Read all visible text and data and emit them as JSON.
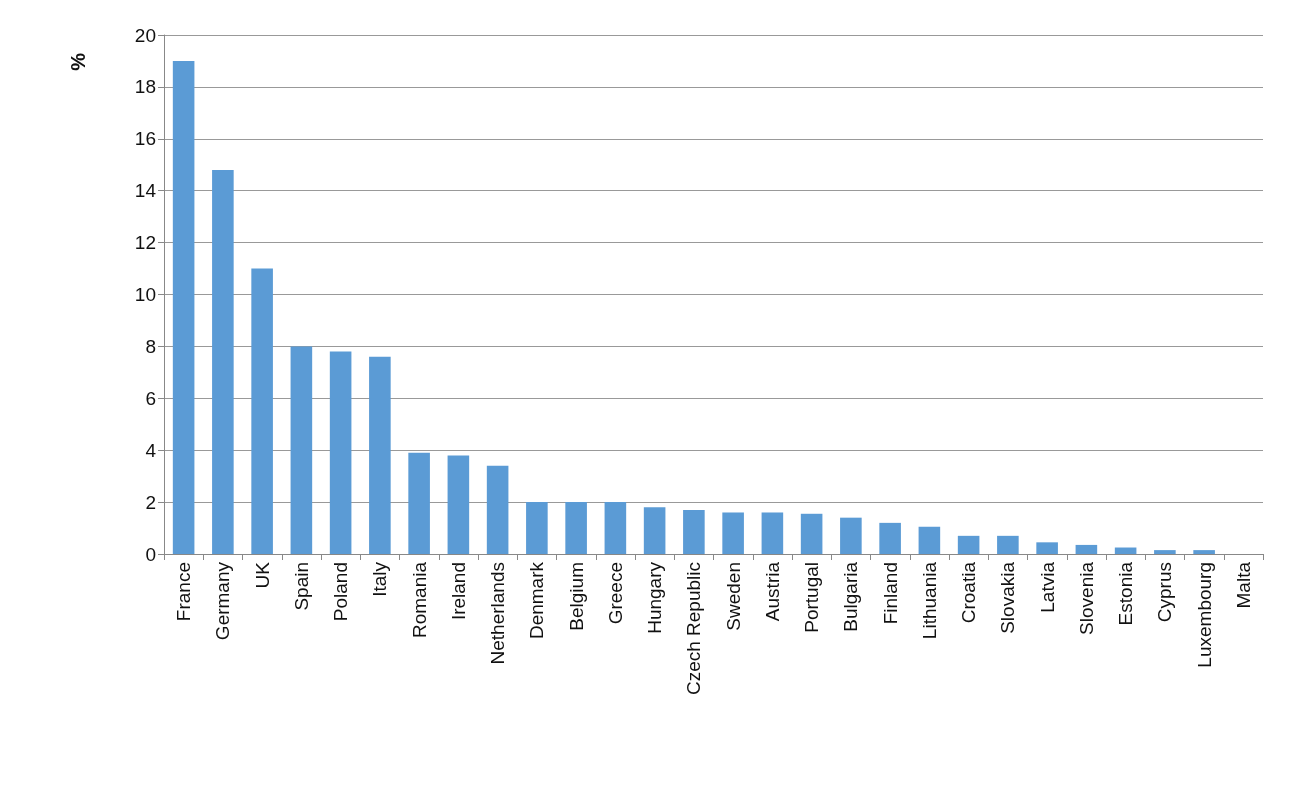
{
  "chart_data": {
    "type": "bar",
    "ylabel": "%",
    "categories": [
      "France",
      "Germany",
      "UK",
      "Spain",
      "Poland",
      "Italy",
      "Romania",
      "Ireland",
      "Netherlands",
      "Denmark",
      "Belgium",
      "Greece",
      "Hungary",
      "Czech Republic",
      "Sweden",
      "Austria",
      "Portugal",
      "Bulgaria",
      "Finland",
      "Lithuania",
      "Croatia",
      "Slovakia",
      "Latvia",
      "Slovenia",
      "Estonia",
      "Cyprus",
      "Luxembourg",
      "Malta"
    ],
    "values": [
      19.0,
      14.8,
      11.0,
      8.0,
      7.8,
      7.6,
      3.9,
      3.8,
      3.4,
      2.0,
      2.0,
      2.0,
      1.8,
      1.7,
      1.6,
      1.6,
      1.55,
      1.4,
      1.2,
      1.05,
      0.7,
      0.7,
      0.45,
      0.35,
      0.25,
      0.15,
      0.15,
      0
    ],
    "color": "#5b9bd5",
    "ylim": [
      0,
      20
    ],
    "yticks": [
      0,
      2,
      4,
      6,
      8,
      10,
      12,
      14,
      16,
      18,
      20
    ],
    "grid": "y"
  }
}
